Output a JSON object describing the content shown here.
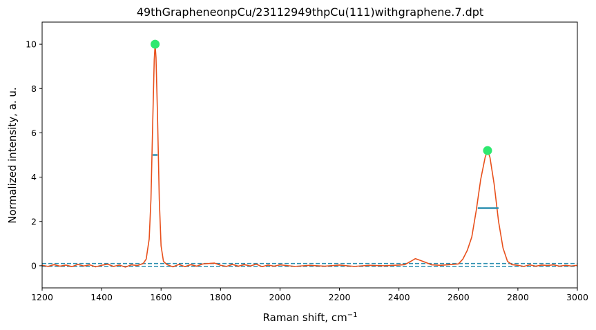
{
  "chart_data": {
    "type": "line",
    "title": "49thGrapheneonpCu/23112949thpCu(111)withgraphene.7.dpt",
    "xlabel": "Raman shift, cm",
    "xlabel_sup": "−1",
    "ylabel": "Normalized intensity, a. u.",
    "xlim": [
      1200,
      3000
    ],
    "ylim": [
      -1,
      11
    ],
    "x_ticks": [
      "1200",
      "1400",
      "1600",
      "1800",
      "2000",
      "2200",
      "2400",
      "2600",
      "2800",
      "3000"
    ],
    "y_ticks": [
      "0",
      "2",
      "4",
      "6",
      "8",
      "10"
    ],
    "grid": false,
    "series": [
      {
        "color": "#e8501c",
        "points": [
          [
            1200,
            0.02
          ],
          [
            1220,
            -0.03
          ],
          [
            1240,
            0.05
          ],
          [
            1260,
            -0.02
          ],
          [
            1280,
            0.03
          ],
          [
            1300,
            -0.04
          ],
          [
            1320,
            0.06
          ],
          [
            1340,
            -0.01
          ],
          [
            1360,
            0.04
          ],
          [
            1380,
            -0.05
          ],
          [
            1400,
            0.02
          ],
          [
            1420,
            0.07
          ],
          [
            1440,
            -0.03
          ],
          [
            1460,
            0.03
          ],
          [
            1480,
            -0.06
          ],
          [
            1500,
            0.04
          ],
          [
            1520,
            0.01
          ],
          [
            1540,
            0.1
          ],
          [
            1550,
            0.3
          ],
          [
            1560,
            1.2
          ],
          [
            1566,
            3.0
          ],
          [
            1572,
            6.5
          ],
          [
            1577,
            9.3
          ],
          [
            1580,
            10.0
          ],
          [
            1583,
            9.4
          ],
          [
            1588,
            6.8
          ],
          [
            1594,
            3.0
          ],
          [
            1600,
            0.9
          ],
          [
            1608,
            0.2
          ],
          [
            1620,
            0.05
          ],
          [
            1640,
            -0.05
          ],
          [
            1660,
            0.06
          ],
          [
            1680,
            -0.04
          ],
          [
            1700,
            0.05
          ],
          [
            1720,
            -0.02
          ],
          [
            1740,
            0.08
          ],
          [
            1760,
            0.1
          ],
          [
            1780,
            0.12
          ],
          [
            1800,
            0.02
          ],
          [
            1820,
            -0.03
          ],
          [
            1840,
            0.06
          ],
          [
            1860,
            -0.02
          ],
          [
            1880,
            0.05
          ],
          [
            1900,
            -0.01
          ],
          [
            1920,
            0.07
          ],
          [
            1940,
            -0.04
          ],
          [
            1960,
            0.03
          ],
          [
            1980,
            -0.02
          ],
          [
            2000,
            0.04
          ],
          [
            2050,
            -0.03
          ],
          [
            2100,
            0.02
          ],
          [
            2150,
            -0.02
          ],
          [
            2200,
            0.03
          ],
          [
            2250,
            -0.03
          ],
          [
            2300,
            0.02
          ],
          [
            2350,
            0.0
          ],
          [
            2400,
            0.03
          ],
          [
            2420,
            0.05
          ],
          [
            2440,
            0.2
          ],
          [
            2455,
            0.32
          ],
          [
            2470,
            0.25
          ],
          [
            2490,
            0.15
          ],
          [
            2510,
            0.04
          ],
          [
            2540,
            0.02
          ],
          [
            2570,
            0.05
          ],
          [
            2600,
            0.08
          ],
          [
            2615,
            0.3
          ],
          [
            2630,
            0.7
          ],
          [
            2645,
            1.3
          ],
          [
            2660,
            2.5
          ],
          [
            2675,
            3.9
          ],
          [
            2690,
            4.9
          ],
          [
            2698,
            5.2
          ],
          [
            2706,
            4.9
          ],
          [
            2720,
            3.7
          ],
          [
            2735,
            2.0
          ],
          [
            2750,
            0.8
          ],
          [
            2765,
            0.2
          ],
          [
            2780,
            0.05
          ],
          [
            2800,
            0.02
          ],
          [
            2820,
            -0.03
          ],
          [
            2840,
            0.04
          ],
          [
            2860,
            -0.02
          ],
          [
            2880,
            0.03
          ],
          [
            2900,
            0.01
          ],
          [
            2920,
            0.04
          ],
          [
            2940,
            -0.02
          ],
          [
            2960,
            0.02
          ],
          [
            2980,
            -0.01
          ],
          [
            3000,
            0.02
          ]
        ]
      }
    ],
    "peaks": [
      {
        "x": 1580,
        "y": 10.0,
        "color": "#2ee86f"
      },
      {
        "x": 2698,
        "y": 5.2,
        "color": "#2ee86f"
      }
    ],
    "half_max_lines": [
      {
        "x1": 1572,
        "x2": 1588,
        "y": 5.0,
        "color": "#2c8fb0"
      },
      {
        "x1": 2665,
        "x2": 2735,
        "y": 2.6,
        "color": "#2c8fb0"
      }
    ],
    "baselines": [
      {
        "y": 0.1,
        "color": "#2c8fb0",
        "style": "dashed"
      },
      {
        "y": -0.03,
        "color": "#2c8fb0",
        "style": "dashed"
      }
    ]
  }
}
